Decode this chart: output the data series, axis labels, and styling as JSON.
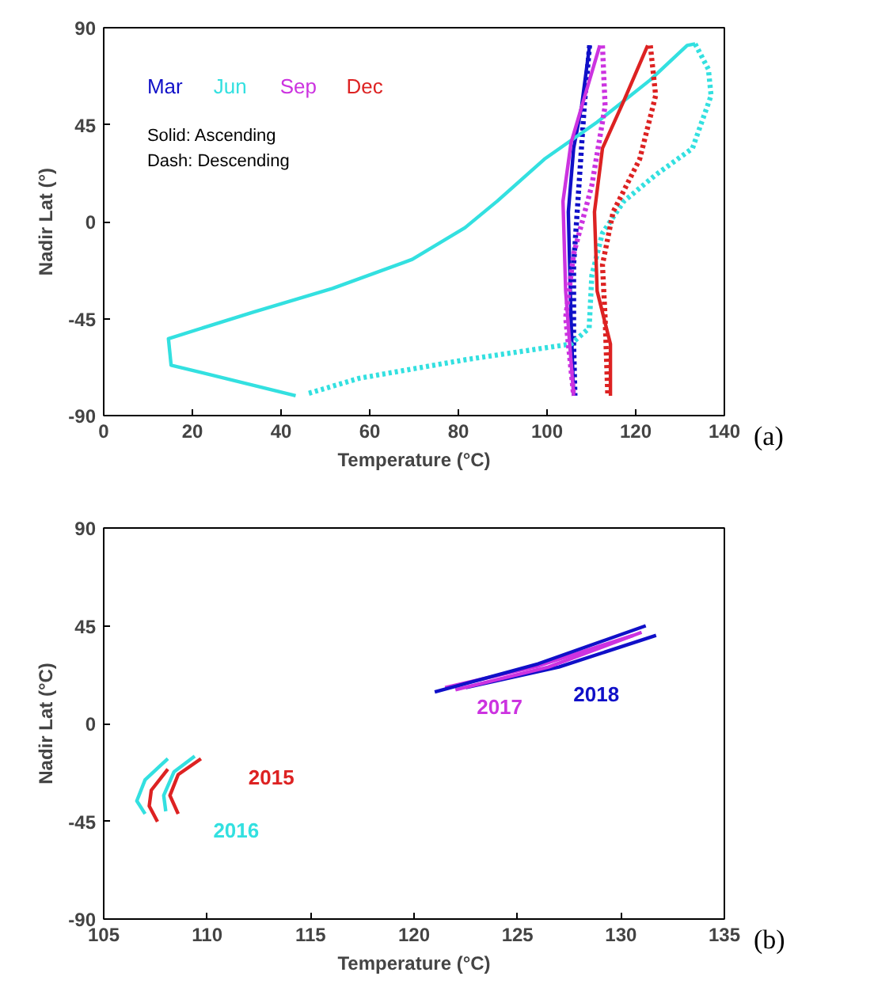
{
  "chart_data": [
    {
      "type": "line",
      "xlabel": "Temperature (°C)",
      "ylabel": "Nadir Lat (°)",
      "xlim": [
        0,
        140
      ],
      "ylim": [
        -90,
        90
      ],
      "xticks": [
        0,
        20,
        40,
        60,
        80,
        100,
        120,
        140
      ],
      "yticks": [
        -90,
        -45,
        0,
        45,
        90
      ],
      "grid": false,
      "legend": "top left",
      "annotations": [
        "Solid: Ascending",
        "Dash: Descending",
        "(a)"
      ],
      "series": [
        {
          "name": "Mar",
          "color": "#1010c8",
          "line_style": "solid",
          "x": [
            106,
            105.4,
            104.8,
            106,
            107.8,
            109.6
          ],
          "values": [
            -80.8,
            -44.5,
            4.5,
            34,
            53.6,
            81.8
          ]
        },
        {
          "color": "#1010c8",
          "line_style": "dashed",
          "x": [
            109.6,
            108.4,
            107.2,
            106,
            106,
            106.3
          ],
          "values": [
            81.8,
            53.6,
            16.8,
            -20,
            -56.8,
            -80.8
          ]
        },
        {
          "name": "Jun",
          "color": "#33e0e0",
          "line_style": "solid",
          "x": [
            43.3,
            15.2,
            14.6,
            33.7,
            51.6,
            69.6,
            81.5,
            88.7,
            99.4,
            111.3,
            123.3,
            131.6,
            133.4
          ],
          "values": [
            -80.8,
            -66.6,
            -54.3,
            -42,
            -31,
            -17.5,
            -2.8,
            9.4,
            29,
            46.2,
            65.8,
            81.8,
            82.5
          ]
        },
        {
          "color": "#33e0e0",
          "line_style": "dashed",
          "x": [
            133.4,
            136.4,
            137,
            132.8,
            124.5,
            117.3,
            112.5,
            110.1,
            109.5,
            105.4,
            81.5,
            57.6,
            45.7
          ],
          "values": [
            82.5,
            70.7,
            58.5,
            34,
            21.7,
            9.4,
            -5.3,
            -24.9,
            -49.4,
            -56.8,
            -64.1,
            -72.7,
            -80
          ]
        },
        {
          "name": "Sep",
          "color": "#cc33e0",
          "line_style": "solid",
          "x": [
            106,
            104.2,
            103.6,
            105.4,
            109.6,
            111.9
          ],
          "values": [
            -80.8,
            -32.2,
            9.4,
            36.4,
            65.8,
            81.8
          ]
        },
        {
          "color": "#cc33e0",
          "line_style": "dashed",
          "x": [
            112.5,
            113.1,
            110.1,
            106,
            104.2,
            106
          ],
          "values": [
            81.8,
            53.6,
            16.8,
            -15,
            -44.5,
            -80.8
          ]
        },
        {
          "name": "Dec",
          "color": "#dd2222",
          "line_style": "solid",
          "x": [
            114.3,
            114.3,
            111.3,
            110.7,
            112.5,
            117.3,
            122.7
          ],
          "values": [
            -80.8,
            -56.8,
            -32.2,
            4.5,
            34,
            56,
            81.8
          ]
        },
        {
          "color": "#dd2222",
          "line_style": "dashed",
          "x": [
            123.3,
            124.5,
            120.9,
            114.9,
            112.5,
            113.1,
            113.7
          ],
          "values": [
            81.8,
            58.5,
            29,
            4.5,
            -20,
            -44.5,
            -80.8
          ]
        }
      ]
    },
    {
      "type": "line",
      "annotations": [
        "(b)"
      ],
      "xlabel": "Temperature (°C)",
      "ylabel": "Nadir Lat (°C)",
      "xlim": [
        105,
        135
      ],
      "ylim": [
        -90,
        90
      ],
      "xticks": [
        105,
        110,
        115,
        120,
        125,
        130,
        135
      ],
      "yticks": [
        -90,
        -45,
        0,
        45,
        90
      ],
      "grid": false,
      "series": [
        {
          "name": "2015",
          "color": "#dd2222",
          "line_style": "solid",
          "x": [
            109.7,
            108.6,
            108.2,
            108.6
          ],
          "values": [
            -16.2,
            -23.5,
            -33.1,
            -41.6
          ]
        },
        {
          "name": "2016",
          "color": "#33e0e0",
          "line_style": "solid",
          "x": [
            108,
            107.9,
            108.4,
            109.4
          ],
          "values": [
            -40.4,
            -33.1,
            -22.2,
            -15
          ]
        },
        {
          "name": "2017",
          "color": "#cc33e0",
          "line_style": "solid",
          "x": [
            121.5,
            126,
            130.6
          ],
          "values": [
            16.5,
            26.5,
            40.6
          ]
        },
        {
          "name": "2018",
          "color": "#1010c8",
          "line_style": "solid",
          "x": [
            122.5,
            127,
            131.7
          ],
          "values": [
            16.5,
            26,
            40.6
          ]
        },
        {
          "color": "#dd2222",
          "line_style": "solid",
          "x": [
            108.1,
            107.3,
            107.2,
            107.6
          ],
          "values": [
            -21,
            -30.7,
            -38,
            -45.2
          ]
        },
        {
          "color": "#33e0e0",
          "line_style": "solid",
          "x": [
            108.1,
            107,
            106.6,
            107
          ],
          "values": [
            -16.2,
            -25.9,
            -35.6,
            -41.6
          ]
        },
        {
          "color": "#cc33e0",
          "line_style": "solid",
          "x": [
            122,
            126.5,
            131
          ],
          "values": [
            15.5,
            26,
            42
          ]
        },
        {
          "color": "#1010c8",
          "line_style": "solid",
          "x": [
            121,
            126,
            131.2
          ],
          "values": [
            14.5,
            27.5,
            45
          ]
        }
      ]
    }
  ]
}
